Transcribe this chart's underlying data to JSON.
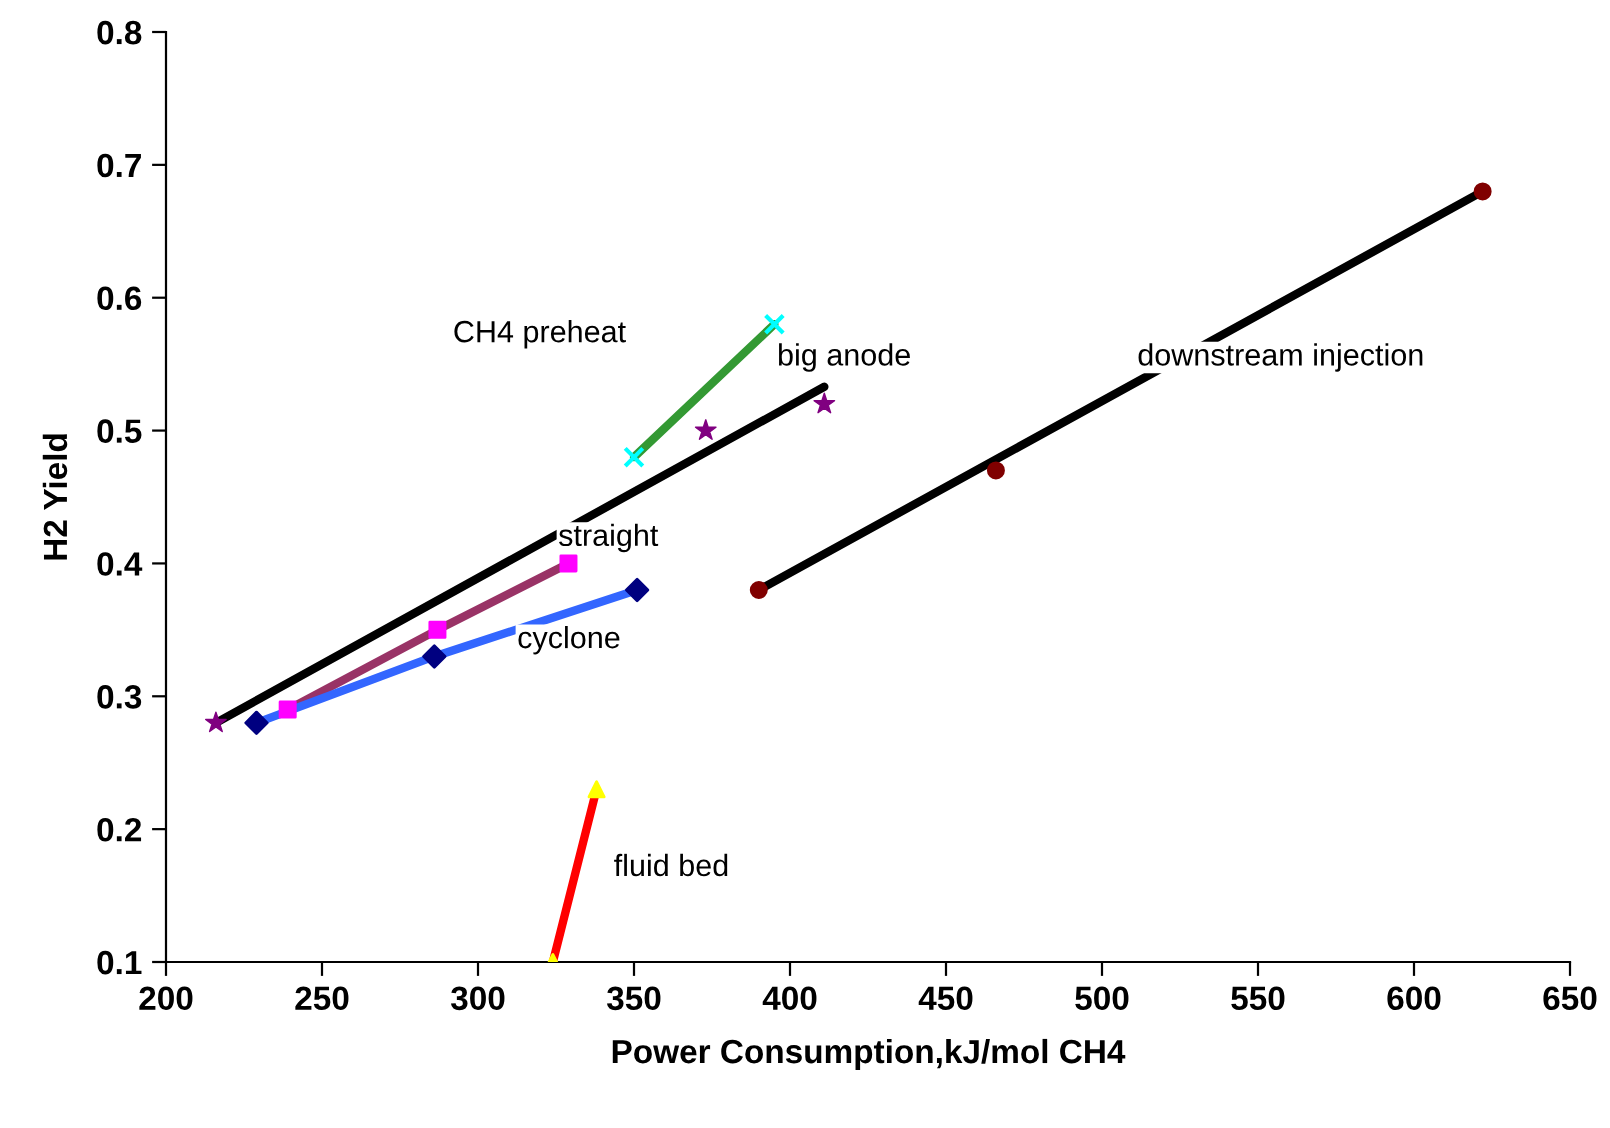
{
  "chart_data": {
    "type": "line",
    "xlabel": "Power Consumption,kJ/mol CH4",
    "ylabel": "H2 Yield",
    "xlim": [
      200,
      650
    ],
    "xticks": [
      200,
      250,
      300,
      350,
      400,
      450,
      500,
      550,
      600,
      650
    ],
    "ylim": [
      0.1,
      0.8
    ],
    "yticks": [
      0.1,
      0.2,
      0.3,
      0.4,
      0.5,
      0.6,
      0.7,
      0.8
    ],
    "grid": false,
    "legend": false,
    "series": [
      {
        "color": "#000000",
        "x": [
          216,
          411
        ],
        "values": [
          0.28,
          0.533
        ],
        "marker": "none"
      },
      {
        "type": "scatter",
        "color": "#800080",
        "x": [
          216,
          373,
          411
        ],
        "values": [
          0.28,
          0.5,
          0.52
        ],
        "marker": "star"
      },
      {
        "color": "#993366",
        "x": [
          239,
          287,
          329
        ],
        "values": [
          0.29,
          0.35,
          0.4
        ],
        "marker": "none"
      },
      {
        "type": "scatter",
        "color": "#ff00ff",
        "x": [
          239,
          287,
          329
        ],
        "values": [
          0.29,
          0.35,
          0.4
        ],
        "marker": "square"
      },
      {
        "color": "#3366ff",
        "x": [
          229,
          286,
          351
        ],
        "values": [
          0.28,
          0.33,
          0.38
        ],
        "marker": "none"
      },
      {
        "type": "scatter",
        "color": "#000080",
        "x": [
          229,
          286,
          351
        ],
        "values": [
          0.28,
          0.33,
          0.38
        ],
        "marker": "diamond"
      },
      {
        "color": "#339933",
        "x": [
          350,
          395
        ],
        "values": [
          0.48,
          0.58
        ],
        "marker": "none"
      },
      {
        "type": "scatter",
        "color": "#00ffff",
        "x": [
          350,
          395
        ],
        "values": [
          0.48,
          0.58
        ],
        "marker": "cross"
      },
      {
        "color": "#000000",
        "x": [
          390,
          622
        ],
        "values": [
          0.38,
          0.68
        ],
        "marker": "none"
      },
      {
        "type": "scatter",
        "color": "#800000",
        "x": [
          390,
          466,
          622
        ],
        "values": [
          0.38,
          0.47,
          0.68
        ],
        "marker": "circle"
      },
      {
        "color": "#ff0000",
        "x": [
          324,
          338
        ],
        "values": [
          0.1,
          0.23
        ],
        "marker": "none"
      },
      {
        "type": "scatter",
        "color": "#ffff00",
        "x": [
          324,
          338
        ],
        "values": [
          0.1,
          0.23
        ],
        "marker": "triangle"
      }
    ],
    "annotations": [
      "CH4 preheat",
      "big anode",
      "downstream injection",
      "straight",
      "cyclone",
      "fluid bed"
    ]
  }
}
